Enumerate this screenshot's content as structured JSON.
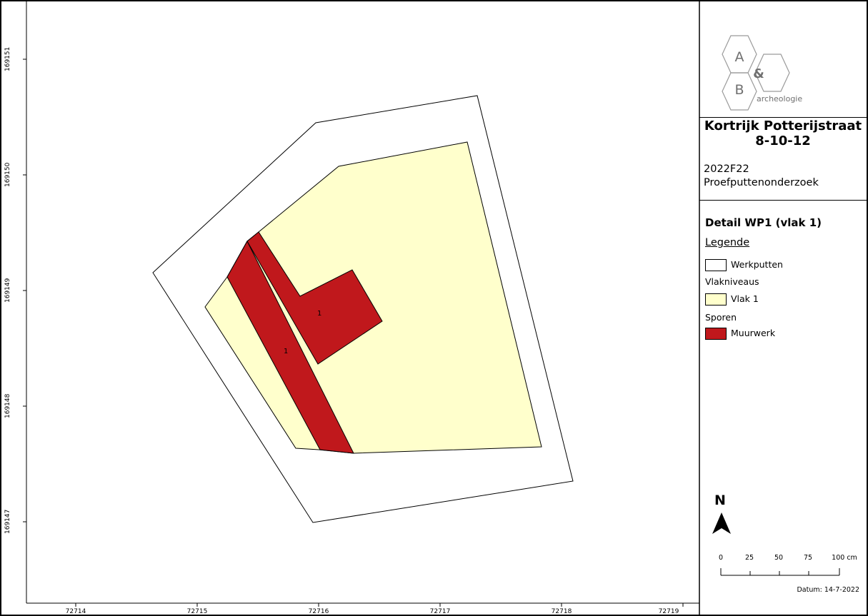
{
  "map": {
    "x_ticks": [
      "72714",
      "72715",
      "72716",
      "72717",
      "72718",
      "72719"
    ],
    "y_ticks": [
      "169151",
      "169150",
      "169149",
      "169148",
      "169147"
    ],
    "feature_labels": [
      "1",
      "1"
    ]
  },
  "logo": {
    "letter_a": "A",
    "ampersand": "&",
    "letter_b": "B",
    "text": "archeologie"
  },
  "title": {
    "line1": "Kortrijk Potterijstraat",
    "line2": "8-10-12"
  },
  "project": {
    "code": "2022F22",
    "type": "Proefputtenonderzoek"
  },
  "legend": {
    "title": "Detail WP1 (vlak 1)",
    "heading": "Legende",
    "items": [
      {
        "label": "Werkputten",
        "color": "#ffffff"
      },
      {
        "group": "Vlakniveaus"
      },
      {
        "label": "Vlak 1",
        "color": "#ffffcc"
      },
      {
        "group": "Sporen"
      },
      {
        "label": "Muurwerk",
        "color": "#c0181c"
      }
    ]
  },
  "north": {
    "label": "N"
  },
  "scalebar": {
    "labels": [
      "0",
      "25",
      "50",
      "75",
      "100 cm"
    ]
  },
  "datum": "Datum: 14-7-2022",
  "colors": {
    "werkput": "#ffffff",
    "vlak": "#ffffcc",
    "muurwerk": "#c0181c",
    "frame": "#000000"
  }
}
